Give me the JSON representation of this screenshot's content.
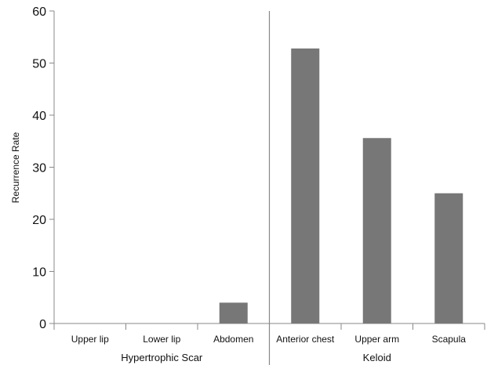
{
  "chart_data": {
    "type": "bar",
    "title": "",
    "xlabel": "",
    "ylabel": "Recurrence Rate",
    "ylim": [
      0,
      60
    ],
    "yticks": [
      0,
      10,
      20,
      30,
      40,
      50,
      60
    ],
    "grid": false,
    "legend": false,
    "categories": [
      "Upper lip",
      "Lower lip",
      "Abdomen",
      "Anterior chest",
      "Upper arm",
      "Scapula"
    ],
    "values": [
      0,
      0,
      4,
      52.8,
      35.6,
      25
    ],
    "groups": [
      {
        "label": "Hypertrophic Scar",
        "categories": [
          "Upper lip",
          "Lower lip",
          "Abdomen"
        ]
      },
      {
        "label": "Keloid",
        "categories": [
          "Anterior chest",
          "Upper arm",
          "Scapula"
        ]
      }
    ],
    "colors": {
      "bar": "#777777",
      "axis": "#888888"
    }
  }
}
